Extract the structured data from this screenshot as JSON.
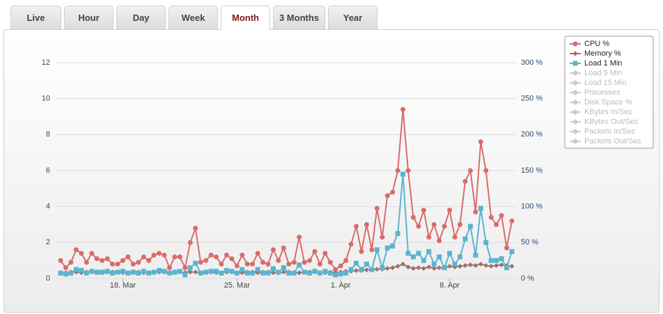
{
  "tabs": {
    "items": [
      "Live",
      "Hour",
      "Day",
      "Week",
      "Month",
      "3 Months",
      "Year"
    ],
    "active": 4
  },
  "chart_data": {
    "type": "line",
    "categories": [
      null,
      null,
      null,
      null,
      null,
      null,
      null,
      null,
      null,
      null,
      null,
      null,
      "18. Mar",
      null,
      null,
      null,
      null,
      null,
      null,
      null,
      null,
      null,
      null,
      null,
      null,
      null,
      null,
      null,
      null,
      null,
      null,
      null,
      null,
      null,
      "25. Mar",
      null,
      null,
      null,
      null,
      null,
      null,
      null,
      null,
      null,
      null,
      null,
      null,
      null,
      null,
      null,
      null,
      null,
      null,
      null,
      "1. Apr",
      null,
      null,
      null,
      null,
      null,
      null,
      null,
      null,
      null,
      null,
      null,
      null,
      null,
      null,
      null,
      null,
      null,
      null,
      null,
      null,
      "8. Apr",
      null,
      null,
      null,
      null,
      null,
      null,
      null,
      null,
      null,
      null,
      null,
      null
    ],
    "series": [
      {
        "name": "CPU %",
        "color": "#d96b6b",
        "marker": "circle",
        "axis": "y2",
        "values": [
          25,
          15,
          22.5,
          40,
          35,
          22.5,
          35,
          27.5,
          25,
          27.5,
          20,
          20,
          25,
          30,
          20,
          22.5,
          30,
          25,
          32.5,
          35,
          32.5,
          15,
          30,
          30,
          15,
          50,
          70,
          22.5,
          25,
          32.5,
          30,
          20,
          32.5,
          27.5,
          17.5,
          32.5,
          20,
          20,
          35,
          22.5,
          20,
          40,
          25,
          42.5,
          20,
          22.5,
          57.5,
          22.5,
          25,
          37.5,
          20,
          35,
          22.5,
          12.5,
          17.5,
          25,
          47.5,
          72.5,
          37.5,
          75,
          40,
          97.5,
          57.5,
          115,
          120,
          150,
          235,
          150,
          85,
          72.5,
          95,
          57.5,
          75,
          52.5,
          72.5,
          95,
          57.5,
          75,
          135,
          150,
          92.5,
          190,
          150,
          85,
          75,
          87.5,
          42.5,
          80
        ]
      },
      {
        "name": "Memory %",
        "color": "#a0706c",
        "marker": "diamond",
        "axis": "y2",
        "values": [
          8,
          8,
          9,
          9,
          8,
          9,
          9,
          8,
          8,
          9,
          9,
          9,
          8,
          8,
          9,
          9,
          8,
          8,
          9,
          9,
          9,
          8,
          8,
          9,
          8,
          9,
          9,
          8,
          9,
          9,
          8,
          8,
          9,
          9,
          8,
          8,
          9,
          9,
          8,
          9,
          9,
          8,
          8,
          9,
          9,
          8,
          8,
          9,
          9,
          9,
          8,
          8,
          9,
          8,
          9,
          10,
          10,
          11,
          11,
          12,
          12,
          13,
          13,
          14,
          15,
          17,
          20,
          16,
          14,
          15,
          14,
          16,
          14,
          15,
          15,
          17,
          16,
          17,
          18,
          19,
          18,
          20,
          18,
          17,
          18,
          19,
          18,
          17
        ]
      },
      {
        "name": "Load 1 Min",
        "color": "#5bb4cf",
        "marker": "square",
        "axis": "y",
        "values": [
          0.3,
          0.25,
          0.3,
          0.5,
          0.45,
          0.3,
          0.4,
          0.35,
          0.35,
          0.4,
          0.3,
          0.35,
          0.4,
          0.3,
          0.35,
          0.3,
          0.4,
          0.3,
          0.35,
          0.45,
          0.4,
          0.3,
          0.35,
          0.4,
          0.2,
          0.6,
          0.85,
          0.3,
          0.35,
          0.4,
          0.4,
          0.3,
          0.45,
          0.4,
          0.3,
          0.5,
          0.3,
          0.3,
          0.5,
          0.3,
          0.3,
          0.55,
          0.35,
          0.6,
          0.3,
          0.3,
          0.75,
          0.35,
          0.3,
          0.4,
          0.3,
          0.4,
          0.3,
          0.2,
          0.25,
          0.3,
          0.5,
          0.85,
          0.5,
          0.8,
          0.5,
          1.6,
          0.6,
          1.7,
          1.8,
          2.5,
          5.8,
          1.4,
          1.2,
          1.4,
          1.0,
          1.5,
          0.8,
          1.2,
          0.6,
          1.4,
          0.8,
          1.2,
          2.2,
          2.9,
          1.3,
          3.9,
          2.0,
          1.0,
          1.0,
          1.1,
          0.6,
          1.5
        ]
      }
    ],
    "inactive_legend": [
      "Load 5 Min",
      "Load 15 Min",
      "Processes",
      "Disk Space %",
      "KBytes In/Sec",
      "KBytes Out/Sec",
      "Packets In/Sec",
      "Packets Out/Sec"
    ],
    "ylim": [
      0,
      12
    ],
    "yticks": [
      0,
      2,
      4,
      6,
      8,
      10,
      12
    ],
    "y2lim": [
      0,
      300
    ],
    "y2ticks": [
      {
        "value": 0,
        "label": "0 %"
      },
      {
        "value": 50,
        "label": "50 %"
      },
      {
        "value": 100,
        "label": "100 %"
      },
      {
        "value": 150,
        "label": "150 %"
      },
      {
        "value": 200,
        "label": "200 %"
      },
      {
        "value": 250,
        "label": "250 %"
      },
      {
        "value": 300,
        "label": "300 %"
      }
    ],
    "grid": true
  }
}
